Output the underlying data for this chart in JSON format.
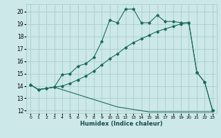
{
  "xlabel": "Humidex (Indice chaleur)",
  "bg_color": "#cce8e8",
  "grid_color": "#aacccc",
  "line_color": "#1a6b5a",
  "xlim": [
    -0.5,
    23.5
  ],
  "ylim": [
    11.8,
    20.6
  ],
  "yticks": [
    12,
    13,
    14,
    15,
    16,
    17,
    18,
    19,
    20
  ],
  "xticks": [
    0,
    1,
    2,
    3,
    4,
    5,
    6,
    7,
    8,
    9,
    10,
    11,
    12,
    13,
    14,
    15,
    16,
    17,
    18,
    19,
    20,
    21,
    22,
    23
  ],
  "series1_x": [
    0,
    1,
    2,
    3,
    4,
    5,
    6,
    7,
    8,
    9,
    10,
    11,
    12,
    13,
    14,
    15,
    16,
    17,
    18,
    19,
    20,
    21,
    22,
    23
  ],
  "series1_y": [
    14.1,
    13.7,
    13.8,
    13.9,
    14.9,
    15.0,
    15.6,
    15.8,
    16.3,
    17.6,
    19.3,
    19.1,
    20.2,
    20.2,
    19.1,
    19.1,
    19.7,
    19.2,
    19.2,
    19.1,
    19.1,
    15.1,
    14.3,
    12.0
  ],
  "series2_x": [
    0,
    1,
    2,
    3,
    4,
    5,
    6,
    7,
    8,
    9,
    10,
    11,
    12,
    13,
    14,
    15,
    16,
    17,
    18,
    19,
    20,
    21,
    22,
    23
  ],
  "series2_y": [
    14.1,
    13.7,
    13.8,
    13.9,
    14.0,
    14.2,
    14.5,
    14.8,
    15.2,
    15.7,
    16.2,
    16.6,
    17.1,
    17.5,
    17.8,
    18.1,
    18.4,
    18.6,
    18.8,
    19.0,
    19.1,
    15.1,
    14.3,
    12.0
  ],
  "series3_x": [
    0,
    1,
    2,
    3,
    4,
    5,
    6,
    7,
    8,
    9,
    10,
    11,
    12,
    13,
    14,
    15,
    16,
    17,
    18,
    19,
    20,
    21,
    22,
    23
  ],
  "series3_y": [
    14.1,
    13.7,
    13.8,
    13.9,
    13.7,
    13.5,
    13.3,
    13.1,
    12.9,
    12.7,
    12.5,
    12.3,
    12.2,
    12.1,
    12.0,
    11.9,
    11.9,
    11.9,
    11.9,
    11.9,
    11.9,
    11.9,
    11.9,
    11.9
  ]
}
